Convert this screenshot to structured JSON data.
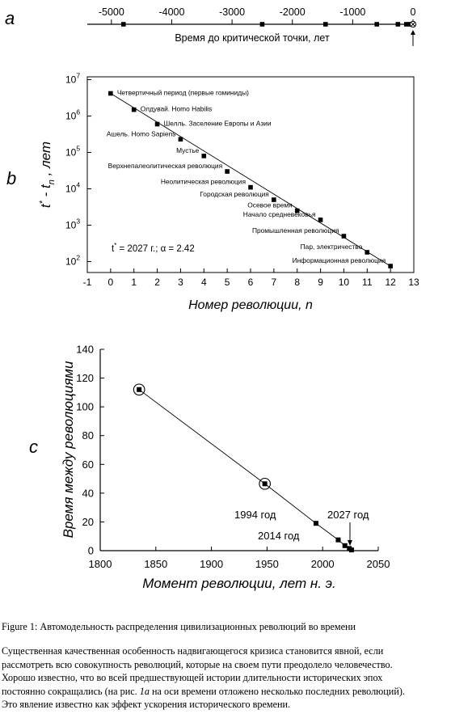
{
  "panel_labels": {
    "a": "a",
    "b": "b",
    "c": "c"
  },
  "chart_data": [
    {
      "type": "scatter",
      "panel": "a",
      "xlabel": "Время до критической точки, лет",
      "xlim": [
        -5400,
        0
      ],
      "x_ticks": [
        -5000,
        -4000,
        -3000,
        -2000,
        -1000,
        0
      ],
      "x": [
        -4800,
        -2500,
        -1450,
        -600,
        -250,
        -110,
        -50,
        -20
      ],
      "critical_point_marker": 0
    },
    {
      "type": "scatter",
      "panel": "b",
      "xlabel": "Номер революции, n",
      "ylabel": "t* - tn , лет",
      "ylabel_parts": {
        "t": "t",
        "sup": "*",
        "mid": " - t",
        "sub": "n",
        "end": " , лет"
      },
      "y_scale": "log",
      "xlim": [
        -1,
        13
      ],
      "ylim": [
        50,
        12000000
      ],
      "x_ticks": [
        "-1",
        "0",
        "1",
        "2",
        "3",
        "4",
        "5",
        "6",
        "7",
        "8",
        "9",
        "10",
        "11",
        "12",
        "13"
      ],
      "y_ticks": [
        {
          "base": "10",
          "exp": "2",
          "v": 100
        },
        {
          "base": "10",
          "exp": "3",
          "v": 1000
        },
        {
          "base": "10",
          "exp": "4",
          "v": 10000
        },
        {
          "base": "10",
          "exp": "5",
          "v": 100000
        },
        {
          "base": "10",
          "exp": "6",
          "v": 1000000
        },
        {
          "base": "10",
          "exp": "7",
          "v": 10000000
        }
      ],
      "fit_line": {
        "x": [
          0,
          12
        ],
        "y": [
          4200000,
          75
        ]
      },
      "annotation": {
        "t": "t",
        "sup": "*",
        "rest": " = 2027 г.;  α = 2.42"
      },
      "points": [
        {
          "n": 0,
          "y": 4200000,
          "label": "Четвертичный период (первые гоминиды)"
        },
        {
          "n": 1,
          "y": 1500000,
          "label": "Олдувай. Homo Habilis"
        },
        {
          "n": 2,
          "y": 600000,
          "label": "Шелль. Заселение Европы и Азии"
        },
        {
          "n": 3,
          "y": 230000,
          "label": "Ашель. Homo Sapiens"
        },
        {
          "n": 4,
          "y": 80000,
          "label": "Мустье"
        },
        {
          "n": 5,
          "y": 30000,
          "label": "Верхнепалеолитическая революция"
        },
        {
          "n": 6,
          "y": 11000,
          "label": "Неолитическая революция"
        },
        {
          "n": 7,
          "y": 5000,
          "label": "Городская революция"
        },
        {
          "n": 8,
          "y": 2500,
          "label": "Осевое время"
        },
        {
          "n": 9,
          "y": 1400,
          "label": "Начало средневековья"
        },
        {
          "n": 10,
          "y": 500,
          "label": "Промышленная революция"
        },
        {
          "n": 11,
          "y": 180,
          "label": "Пар, электричество"
        },
        {
          "n": 12,
          "y": 75,
          "label": "Информационная революция"
        }
      ]
    },
    {
      "type": "scatter",
      "panel": "c",
      "xlabel": "Момент революции, лет н. э.",
      "ylabel": "Время между революциями",
      "xlim": [
        1800,
        2050
      ],
      "ylim": [
        0,
        140
      ],
      "x_ticks": [
        1800,
        1850,
        1900,
        1950,
        2000,
        2050
      ],
      "y_ticks": [
        0,
        20,
        40,
        60,
        80,
        100,
        120,
        140
      ],
      "x": [
        1835,
        1948,
        1994,
        2014,
        2020,
        2024,
        2026
      ],
      "y": [
        112,
        46.5,
        19,
        7.5,
        3.5,
        1.5,
        0.5
      ],
      "circled": [
        1835,
        1948
      ],
      "annotations": [
        "1994 год",
        "2014 год",
        "2027 год"
      ],
      "critical_point": 2027
    }
  ],
  "caption": "Figure 1: Автомодельность распределения цивилизационных революций во времени",
  "paragraph": {
    "l1": "Существенная качественная особенность надвигающегося кризиса становится явной, если",
    "l2": "рассмотреть всю совокупность революций, которые на своем пути преодолело человечество.",
    "l3": "Хорошо известно, что во всей предшествующей истории длительности исторических эпох",
    "l4_before": "постоянно сокращались (на рис. ",
    "l4_ref": "1",
    "l4_ref_letter": "a",
    "l4_after": " на оси времени отложено несколько последних революций).",
    "l5": "Это явление известно как эффект ускорения исторического времени."
  }
}
